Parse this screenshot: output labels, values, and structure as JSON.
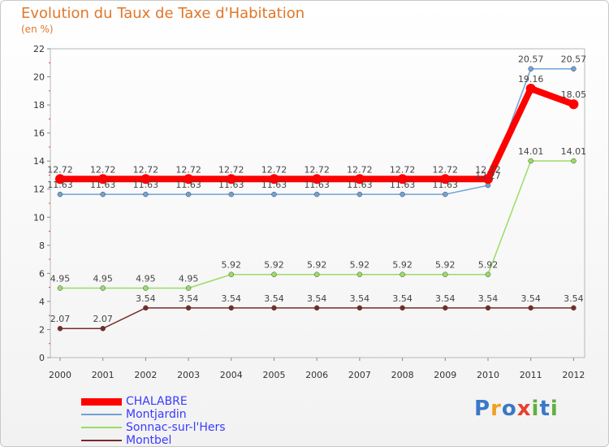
{
  "header": {
    "title": "Evolution du Taux de Taxe d'Habitation",
    "subtitle": "(en %)"
  },
  "chart_data": {
    "type": "line",
    "title": "Evolution du Taux de Taxe d'Habitation",
    "subtitle": "(en %)",
    "xlabel": "",
    "ylabel": "",
    "categories": [
      "2000",
      "2001",
      "2002",
      "2003",
      "2004",
      "2005",
      "2006",
      "2007",
      "2008",
      "2009",
      "2010",
      "2011",
      "2012"
    ],
    "ylim": [
      0,
      22
    ],
    "yticks": [
      0,
      2,
      4,
      6,
      8,
      10,
      12,
      14,
      16,
      18,
      20,
      22
    ],
    "grid": false,
    "legend_position": "bottom-left",
    "series": [
      {
        "name": "CHALABRE",
        "color": "#ff0000",
        "style": "thick",
        "values": [
          12.72,
          12.72,
          12.72,
          12.72,
          12.72,
          12.72,
          12.72,
          12.72,
          12.72,
          12.72,
          12.72,
          19.16,
          18.05
        ],
        "labels": [
          "12.72",
          "12.72",
          "12.72",
          "12.72",
          "12.72",
          "12.72",
          "12.72",
          "12.72",
          "12.72",
          "12.72",
          "12.72",
          "19.16",
          "18.05"
        ]
      },
      {
        "name": "Montjardin",
        "color": "#6fa3d6",
        "style": "thin",
        "values": [
          11.63,
          11.63,
          11.63,
          11.63,
          11.63,
          11.63,
          11.63,
          11.63,
          11.63,
          11.63,
          12.27,
          20.57,
          20.57
        ],
        "labels": [
          "11.63",
          "11.63",
          "11.63",
          "11.63",
          "11.63",
          "11.63",
          "11.63",
          "11.63",
          "11.63",
          "11.63",
          "12.27",
          "20.57",
          "20.57"
        ]
      },
      {
        "name": "Sonnac-sur-l'Hers",
        "color": "#99dd66",
        "style": "thin",
        "values": [
          4.95,
          4.95,
          4.95,
          4.95,
          5.92,
          5.92,
          5.92,
          5.92,
          5.92,
          5.92,
          5.92,
          14.01,
          14.01
        ],
        "labels": [
          "4.95",
          "4.95",
          "4.95",
          "4.95",
          "5.92",
          "5.92",
          "5.92",
          "5.92",
          "5.92",
          "5.92",
          "5.92",
          "14.01",
          "14.01"
        ]
      },
      {
        "name": "Montbel",
        "color": "#7a2a2a",
        "style": "thin",
        "values": [
          2.07,
          2.07,
          3.54,
          3.54,
          3.54,
          3.54,
          3.54,
          3.54,
          3.54,
          3.54,
          3.54,
          3.54,
          3.54
        ],
        "labels": [
          "2.07",
          "2.07",
          "3.54",
          "3.54",
          "3.54",
          "3.54",
          "3.54",
          "3.54",
          "3.54",
          "3.54",
          "3.54",
          "3.54",
          "3.54"
        ]
      }
    ]
  },
  "legend": {
    "items": [
      {
        "label": "CHALABRE",
        "color": "#ff0000"
      },
      {
        "label": "Montjardin",
        "color": "#6fa3d6"
      },
      {
        "label": "Sonnac-sur-l'Hers",
        "color": "#99dd66"
      },
      {
        "label": "Montbel",
        "color": "#7a2a2a"
      }
    ]
  },
  "logo": {
    "text": "Proxiti",
    "letters": [
      "P",
      "r",
      "o",
      "x",
      "i",
      "t",
      "i"
    ],
    "colors": [
      "#3a78c8",
      "#f0a020",
      "#3a78c8",
      "#e84030",
      "#60b040",
      "#3a78c8",
      "#60b040"
    ]
  }
}
